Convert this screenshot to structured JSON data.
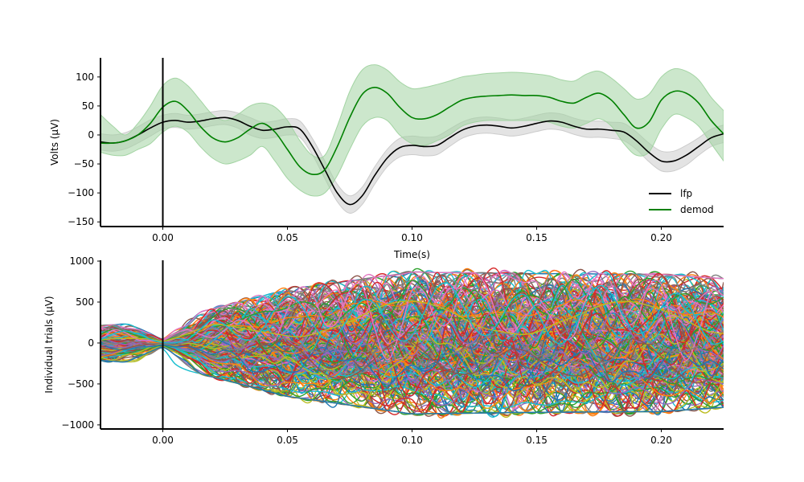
{
  "chart_data": [
    {
      "type": "line",
      "xlabel": "Time(s)",
      "ylabel": "Volts (μV)",
      "xlim": [
        -0.025,
        0.225
      ],
      "ylim": [
        -158,
        133
      ],
      "xticks": [
        0.0,
        0.05,
        0.1,
        0.15,
        0.2
      ],
      "xtick_labels": [
        "0.00",
        "0.05",
        "0.10",
        "0.15",
        "0.20"
      ],
      "yticks": [
        100,
        50,
        0,
        -50,
        -100,
        -150
      ],
      "ytick_labels": [
        "100",
        "50",
        "0",
        "−50",
        "−100",
        "−150"
      ],
      "vline_x": 0.0,
      "legend_position": "lower-right",
      "series": [
        {
          "name": "lfp",
          "color": "#000000",
          "band_color": "#cccccc",
          "x": [
            -0.025,
            -0.02,
            -0.015,
            -0.01,
            -0.005,
            0.0,
            0.005,
            0.01,
            0.015,
            0.02,
            0.025,
            0.03,
            0.035,
            0.04,
            0.045,
            0.05,
            0.055,
            0.06,
            0.065,
            0.07,
            0.075,
            0.08,
            0.085,
            0.09,
            0.095,
            0.1,
            0.105,
            0.11,
            0.115,
            0.12,
            0.125,
            0.13,
            0.135,
            0.14,
            0.145,
            0.15,
            0.155,
            0.16,
            0.165,
            0.17,
            0.175,
            0.18,
            0.185,
            0.19,
            0.195,
            0.2,
            0.205,
            0.21,
            0.215,
            0.22,
            0.225
          ],
          "values": [
            -12,
            -14,
            -10,
            0,
            12,
            22,
            25,
            22,
            24,
            28,
            30,
            25,
            15,
            8,
            10,
            14,
            10,
            -20,
            -60,
            -100,
            -120,
            -105,
            -70,
            -40,
            -22,
            -18,
            -20,
            -18,
            -5,
            8,
            15,
            17,
            15,
            12,
            15,
            20,
            24,
            22,
            15,
            10,
            10,
            8,
            5,
            -10,
            -30,
            -45,
            -45,
            -35,
            -20,
            -5,
            2
          ],
          "upper": [
            2,
            0,
            4,
            14,
            26,
            34,
            37,
            34,
            36,
            40,
            42,
            38,
            30,
            22,
            24,
            28,
            24,
            -6,
            -45,
            -85,
            -105,
            -90,
            -55,
            -25,
            -6,
            -2,
            -4,
            -2,
            10,
            22,
            29,
            31,
            29,
            26,
            29,
            34,
            38,
            36,
            29,
            24,
            24,
            22,
            20,
            5,
            -14,
            -28,
            -28,
            -18,
            -5,
            10,
            17
          ],
          "lower": [
            -26,
            -28,
            -24,
            -14,
            -2,
            10,
            13,
            10,
            12,
            16,
            18,
            12,
            0,
            -6,
            -4,
            0,
            -4,
            -34,
            -75,
            -115,
            -135,
            -120,
            -85,
            -55,
            -38,
            -34,
            -36,
            -34,
            -20,
            -6,
            1,
            3,
            1,
            -2,
            1,
            6,
            10,
            8,
            1,
            -4,
            -4,
            -6,
            -10,
            -25,
            -46,
            -62,
            -62,
            -52,
            -35,
            -20,
            -13
          ]
        },
        {
          "name": "demod",
          "color": "#008000",
          "band_color": "#a3d4a3",
          "x": [
            -0.025,
            -0.02,
            -0.015,
            -0.01,
            -0.005,
            0.0,
            0.005,
            0.01,
            0.015,
            0.02,
            0.025,
            0.03,
            0.035,
            0.04,
            0.045,
            0.05,
            0.055,
            0.06,
            0.065,
            0.07,
            0.075,
            0.08,
            0.085,
            0.09,
            0.095,
            0.1,
            0.105,
            0.11,
            0.115,
            0.12,
            0.125,
            0.13,
            0.135,
            0.14,
            0.145,
            0.15,
            0.155,
            0.16,
            0.165,
            0.17,
            0.175,
            0.18,
            0.185,
            0.19,
            0.195,
            0.2,
            0.205,
            0.21,
            0.215,
            0.22,
            0.225
          ],
          "values": [
            -14,
            -14,
            -10,
            0,
            20,
            48,
            58,
            42,
            15,
            -5,
            -12,
            -5,
            10,
            20,
            5,
            -25,
            -55,
            -68,
            -60,
            -20,
            30,
            70,
            82,
            72,
            48,
            30,
            28,
            35,
            48,
            60,
            65,
            67,
            68,
            69,
            68,
            68,
            65,
            58,
            55,
            65,
            72,
            60,
            35,
            12,
            22,
            60,
            75,
            72,
            55,
            25,
            2
          ],
          "upper": [
            35,
            15,
            0,
            20,
            50,
            85,
            98,
            85,
            60,
            35,
            25,
            35,
            50,
            55,
            48,
            25,
            -10,
            -35,
            -35,
            15,
            75,
            112,
            121,
            112,
            92,
            80,
            82,
            87,
            93,
            100,
            103,
            106,
            107,
            108,
            107,
            105,
            102,
            95,
            93,
            105,
            110,
            98,
            80,
            62,
            70,
            100,
            114,
            110,
            95,
            65,
            42
          ],
          "lower": [
            -30,
            -35,
            -35,
            -25,
            -15,
            5,
            15,
            5,
            -20,
            -40,
            -50,
            -45,
            -35,
            -20,
            -45,
            -75,
            -95,
            -105,
            -100,
            -70,
            -25,
            15,
            30,
            25,
            0,
            -15,
            -18,
            -10,
            0,
            15,
            22,
            25,
            25,
            25,
            25,
            25,
            22,
            15,
            12,
            20,
            28,
            15,
            -15,
            -35,
            -30,
            10,
            35,
            30,
            15,
            -15,
            -45
          ]
        }
      ]
    },
    {
      "type": "line",
      "xlabel": "",
      "ylabel": "Individual trials (μV)",
      "xlim": [
        -0.025,
        0.225
      ],
      "ylim": [
        -1050,
        1010
      ],
      "xticks": [
        0.0,
        0.05,
        0.1,
        0.15,
        0.2
      ],
      "xtick_labels": [
        "0.00",
        "0.05",
        "0.10",
        "0.15",
        "0.20"
      ],
      "yticks": [
        1000,
        500,
        0,
        -500,
        -1000
      ],
      "ytick_labels": [
        "1000",
        "500",
        "0",
        "−500",
        "−1000"
      ],
      "vline_x": 0.0,
      "trial_count": 300,
      "trial_colors": [
        "#1f77b4",
        "#ff7f0e",
        "#2ca02c",
        "#d62728",
        "#9467bd",
        "#8c564b",
        "#e377c2",
        "#7f7f7f",
        "#bcbd22",
        "#17becf"
      ],
      "envelope_x": [
        -0.025,
        0.0,
        0.05,
        0.1,
        0.15,
        0.2,
        0.225
      ],
      "envelope_max": [
        230,
        300,
        700,
        930,
        900,
        900,
        820
      ],
      "envelope_min": [
        -230,
        -250,
        -700,
        -930,
        -920,
        -900,
        -870
      ]
    }
  ]
}
